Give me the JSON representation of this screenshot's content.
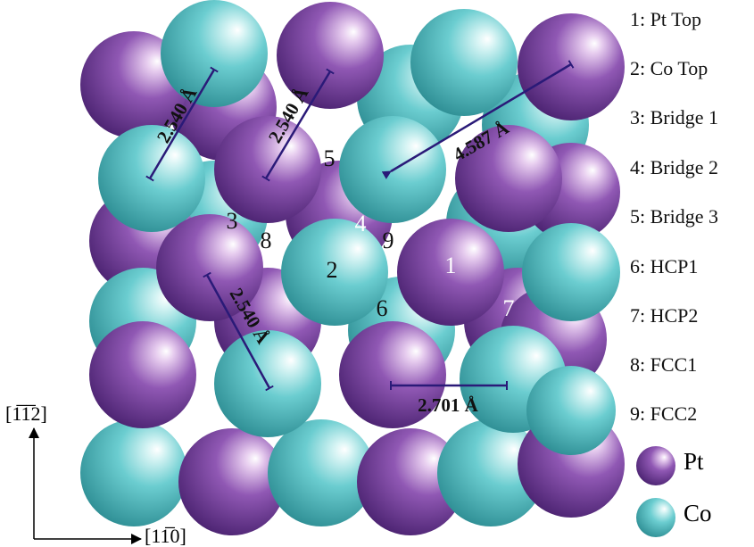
{
  "site_list": [
    "1: Pt Top",
    "2: Co Top",
    "3: Bridge 1",
    "4: Bridge 2",
    "5: Bridge 3",
    "6: HCP1",
    "7: HCP2",
    "8: FCC1",
    "9: FCC2"
  ],
  "site_markers": [
    "1",
    "2",
    "3",
    "4",
    "5",
    "6",
    "7",
    "8",
    "9"
  ],
  "distances": [
    "2.540 Å",
    "2.540 Å",
    "4.587 Å",
    "2.540 Å",
    "2.701 Å"
  ],
  "legend": {
    "pt": "Pt",
    "co": "Co"
  },
  "axes": {
    "vertical": "[1̅1̅2]",
    "horizontal": "[11̅0]"
  }
}
